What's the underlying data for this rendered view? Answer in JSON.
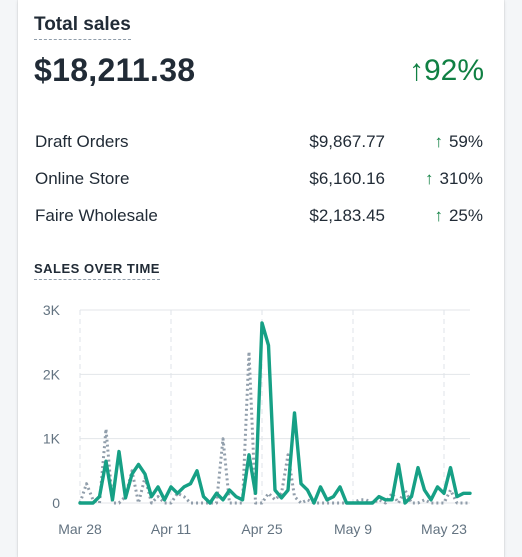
{
  "summary": {
    "title": "Total sales",
    "total": "$18,211.38",
    "change": "92%",
    "change_arrow": "↑",
    "up_color": "#108043"
  },
  "breakdown": [
    {
      "name": "Draft Orders",
      "amount": "$9,867.77",
      "change": "59%",
      "arrow": "↑"
    },
    {
      "name": "Online Store",
      "amount": "$6,160.16",
      "change": "310%",
      "arrow": "↑"
    },
    {
      "name": "Faire Wholesale",
      "amount": "$2,183.45",
      "change": "25%",
      "arrow": "↑"
    }
  ],
  "sales_over_time": {
    "title": "SALES OVER TIME"
  },
  "chart_data": {
    "type": "line",
    "title": "SALES OVER TIME",
    "y_ticks": [
      "0",
      "1K",
      "2K",
      "3K"
    ],
    "ylim": [
      0,
      3000
    ],
    "x_tick_labels": [
      "Mar 28",
      "Apr 11",
      "Apr 25",
      "May 9",
      "May 23"
    ],
    "x": [
      "Mar 28",
      "Mar 29",
      "Mar 30",
      "Mar 31",
      "Apr 1",
      "Apr 2",
      "Apr 3",
      "Apr 4",
      "Apr 5",
      "Apr 6",
      "Apr 7",
      "Apr 8",
      "Apr 9",
      "Apr 10",
      "Apr 11",
      "Apr 12",
      "Apr 13",
      "Apr 14",
      "Apr 15",
      "Apr 16",
      "Apr 17",
      "Apr 18",
      "Apr 19",
      "Apr 20",
      "Apr 21",
      "Apr 22",
      "Apr 23",
      "Apr 24",
      "Apr 25",
      "Apr 26",
      "Apr 27",
      "Apr 28",
      "Apr 29",
      "Apr 30",
      "May 1",
      "May 2",
      "May 3",
      "May 4",
      "May 5",
      "May 6",
      "May 7",
      "May 8",
      "May 9",
      "May 10",
      "May 11",
      "May 12",
      "May 13",
      "May 14",
      "May 15",
      "May 16",
      "May 17",
      "May 18",
      "May 19",
      "May 20",
      "May 21",
      "May 22",
      "May 23",
      "May 24",
      "May 25",
      "May 26",
      "May 27"
    ],
    "grid": "horizontal solid, vertical dashed",
    "series": [
      {
        "style": "solid",
        "color": "#16a085",
        "values": [
          0,
          0,
          0,
          100,
          650,
          50,
          800,
          80,
          450,
          600,
          450,
          100,
          250,
          50,
          250,
          150,
          250,
          300,
          500,
          100,
          0,
          150,
          50,
          200,
          100,
          50,
          750,
          150,
          2800,
          2450,
          200,
          80,
          200,
          1400,
          300,
          200,
          0,
          250,
          50,
          100,
          250,
          0,
          0,
          0,
          0,
          0,
          100,
          50,
          50,
          600,
          0,
          100,
          550,
          200,
          50,
          250,
          150,
          550,
          100,
          150,
          150
        ]
      },
      {
        "style": "dotted",
        "color": "#919eab",
        "values": [
          0,
          300,
          50,
          0,
          1150,
          0,
          0,
          100,
          500,
          0,
          400,
          0,
          100,
          0,
          0,
          150,
          100,
          0,
          0,
          0,
          0,
          0,
          1000,
          0,
          0,
          0,
          2350,
          0,
          0,
          150,
          50,
          150,
          750,
          100,
          0,
          50,
          0,
          0,
          0,
          0,
          0,
          0,
          0,
          50,
          50,
          0,
          50,
          0,
          150,
          0,
          200,
          0,
          0,
          50,
          0,
          0,
          0,
          200,
          0,
          0,
          0
        ]
      }
    ]
  }
}
